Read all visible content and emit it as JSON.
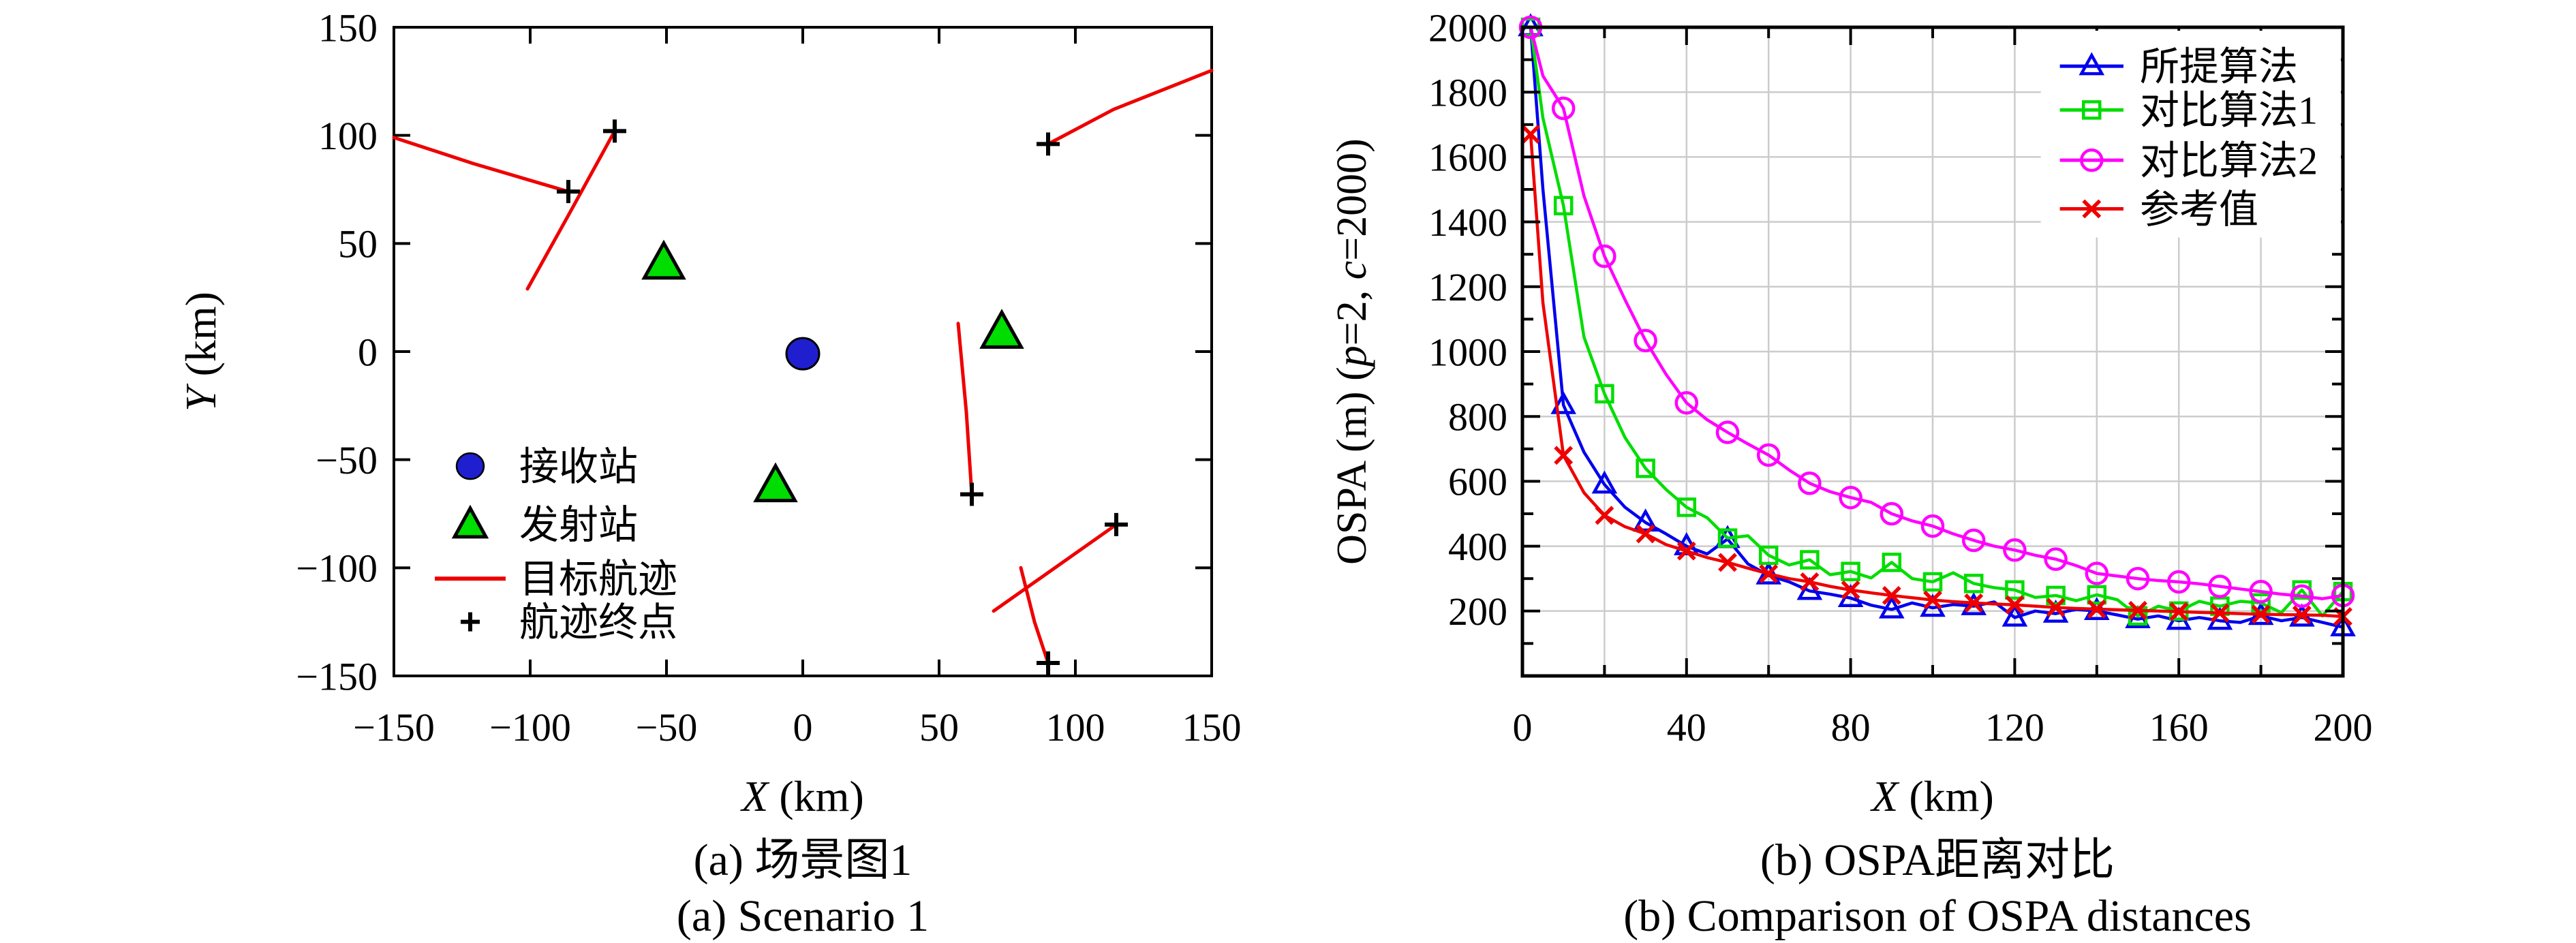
{
  "captions": {
    "left_zh": "(a) 场景图1",
    "left_en": "(a) Scenario 1",
    "right_zh": "(b) OSPA距离对比",
    "right_en": "(b) Comparison of OSPA distances"
  },
  "chart_data": [
    {
      "type": "scatter",
      "title": "",
      "xlabel_parts": [
        {
          "t": "X",
          "i": true
        },
        {
          "t": " (km)",
          "i": false
        }
      ],
      "ylabel_parts": [
        {
          "t": "Y",
          "i": true
        },
        {
          "t": " (km)",
          "i": false
        }
      ],
      "xlim": [
        -150,
        150
      ],
      "ylim": [
        -150,
        150
      ],
      "xticks": [
        -150,
        -100,
        -50,
        0,
        50,
        100,
        150
      ],
      "yticks": [
        -150,
        -100,
        -50,
        0,
        50,
        100,
        150
      ],
      "grid": false,
      "axis_color": "#000000",
      "receiver": {
        "label": "接收站",
        "color": "#1f1fd0",
        "pos": [
          [
            0,
            -1
          ]
        ]
      },
      "transmitters": {
        "label": "发射站",
        "color": "#00dd00",
        "pos": [
          [
            -51,
            41
          ],
          [
            73,
            9
          ],
          [
            -10,
            -62
          ]
        ]
      },
      "trajectories": {
        "label": "目标航迹",
        "color": "#ee0000",
        "paths": [
          [
            [
              -150,
              99
            ],
            [
              -121,
              87
            ],
            [
              -86,
              74
            ]
          ],
          [
            [
              -101,
              29
            ],
            [
              -86,
              63
            ],
            [
              -69,
              102
            ]
          ],
          [
            [
              150,
              130
            ],
            [
              114,
              112
            ],
            [
              90,
              96
            ]
          ],
          [
            [
              57,
              13
            ],
            [
              60,
              -28
            ],
            [
              62,
              -66
            ]
          ],
          [
            [
              70,
              -120
            ],
            [
              115,
              -80
            ]
          ],
          [
            [
              80,
              -100
            ],
            [
              85,
              -125
            ],
            [
              90,
              -144
            ]
          ]
        ]
      },
      "endpoints": {
        "label": "航迹终点",
        "color": "#000000",
        "pos": [
          [
            -86,
            74
          ],
          [
            -69,
            102
          ],
          [
            90,
            96
          ],
          [
            62,
            -66
          ],
          [
            115,
            -80
          ],
          [
            90,
            -144
          ]
        ]
      },
      "legend": {
        "marker_x": -122,
        "line_x": [
          -135,
          -109
        ],
        "text_x": -104,
        "rows_y": [
          -53,
          -80,
          -105,
          -125
        ]
      }
    },
    {
      "type": "line",
      "title": "",
      "xlabel_parts": [
        {
          "t": "X",
          "i": true
        },
        {
          "t": " (km)",
          "i": false
        }
      ],
      "ylabel_parts": [
        {
          "t": "OSPA (m) (",
          "i": false
        },
        {
          "t": "p",
          "i": true
        },
        {
          "t": "=2, ",
          "i": false
        },
        {
          "t": "c",
          "i": true
        },
        {
          "t": "=2000)",
          "i": false
        }
      ],
      "xlim": [
        0,
        200
      ],
      "ylim": [
        0,
        2000
      ],
      "x_major_ticks": [
        0,
        40,
        80,
        120,
        160,
        200
      ],
      "x_minor_step": 20,
      "y_major_ticks": [
        200,
        400,
        600,
        800,
        1000,
        1200,
        1400,
        1600,
        1800,
        2000
      ],
      "y_minor_step": 100,
      "x_grid_step": 20,
      "y_grid_step": 200,
      "grid": true,
      "grid_color": "#cccccc",
      "axis_color": "#000000",
      "x": [
        2,
        5,
        10,
        15,
        20,
        25,
        30,
        35,
        40,
        45,
        50,
        55,
        60,
        65,
        70,
        75,
        80,
        85,
        90,
        95,
        100,
        105,
        110,
        115,
        120,
        125,
        130,
        135,
        140,
        145,
        150,
        155,
        160,
        165,
        170,
        175,
        180,
        185,
        190,
        195,
        200
      ],
      "marker_x": [
        2,
        10,
        20,
        30,
        40,
        50,
        60,
        70,
        80,
        90,
        100,
        110,
        120,
        130,
        140,
        150,
        160,
        170,
        180,
        190,
        200
      ],
      "series": [
        {
          "name": "所提算法",
          "color": "#0000ee",
          "marker": "triangle",
          "values": [
            2000,
            1500,
            835,
            690,
            590,
            520,
            473,
            438,
            400,
            376,
            422,
            345,
            310,
            290,
            262,
            252,
            240,
            218,
            205,
            225,
            210,
            220,
            215,
            228,
            180,
            200,
            192,
            205,
            200,
            188,
            175,
            185,
            170,
            180,
            170,
            165,
            185,
            170,
            180,
            165,
            150
          ]
        },
        {
          "name": "对比算法1",
          "color": "#00dd00",
          "marker": "square",
          "values": [
            2000,
            1720,
            1450,
            1045,
            870,
            735,
            640,
            575,
            520,
            488,
            425,
            432,
            372,
            342,
            358,
            312,
            322,
            302,
            350,
            300,
            290,
            318,
            285,
            272,
            265,
            242,
            248,
            232,
            250,
            235,
            185,
            215,
            200,
            230,
            215,
            230,
            225,
            195,
            265,
            185,
            260
          ]
        },
        {
          "name": "对比算法2",
          "color": "#ff00ff",
          "marker": "circle",
          "values": [
            2000,
            1850,
            1750,
            1480,
            1294,
            1160,
            1034,
            930,
            842,
            790,
            751,
            715,
            681,
            635,
            594,
            568,
            550,
            535,
            500,
            478,
            462,
            438,
            418,
            400,
            388,
            372,
            360,
            340,
            316,
            308,
            300,
            294,
            290,
            284,
            276,
            268,
            260,
            252,
            246,
            238,
            248
          ]
        },
        {
          "name": "参考值",
          "color": "#ee0000",
          "marker": "x",
          "values": [
            1670,
            1150,
            680,
            565,
            495,
            460,
            438,
            405,
            385,
            365,
            350,
            332,
            315,
            300,
            290,
            276,
            265,
            256,
            248,
            241,
            234,
            229,
            225,
            222,
            219,
            215,
            211,
            208,
            206,
            204,
            202,
            200,
            198,
            196,
            194,
            192,
            190,
            189,
            188,
            187,
            183
          ]
        }
      ],
      "legend": {
        "line_x": [
          131,
          146.5
        ],
        "text_x": 150.5,
        "rows_val": [
          1880,
          1745,
          1590,
          1440
        ]
      }
    }
  ]
}
